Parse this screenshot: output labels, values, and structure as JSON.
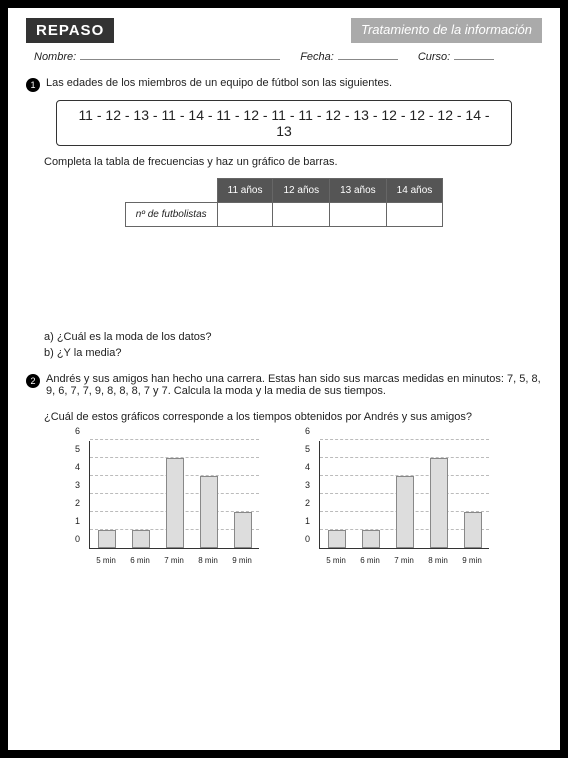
{
  "header": {
    "left": "REPASO",
    "right": "Tratamiento de la información"
  },
  "info": {
    "nombre_label": "Nombre:",
    "fecha_label": "Fecha:",
    "curso_label": "Curso:"
  },
  "q1": {
    "num": "1",
    "text": "Las edades de los miembros de un equipo de fútbol son las siguientes.",
    "data": "11 - 12 - 13 - 11 - 14 - 11 - 12 - 11 - 11 - 12 - 13 - 12 - 12 - 12 - 14 - 13",
    "instruction": "Completa la tabla de frecuencias y haz un gráfico de barras.",
    "table": {
      "row_label": "nº de futbolistas",
      "cols": [
        "11 años",
        "12 años",
        "13 años",
        "14 años"
      ]
    },
    "a": "a)  ¿Cuál es la moda de los datos?",
    "b": "b)  ¿Y la media?"
  },
  "q2": {
    "num": "2",
    "text": "Andrés y sus amigos han hecho una carrera. Estas han sido sus marcas medidas en minutos: 7, 5, 8, 9, 6, 7, 7, 9, 8, 8, 8, 7 y 7. Calcula la moda y la media de sus tiempos.",
    "sub": "¿Cuál de estos gráficos corresponde a los tiempos obtenidos por Andrés y sus amigos?"
  },
  "chart": {
    "y_ticks": [
      0,
      1,
      2,
      3,
      4,
      5,
      6
    ],
    "x_labels": [
      "5 min",
      "6 min",
      "7 min",
      "8 min",
      "9 min"
    ],
    "y_max": 6,
    "chart1_values": [
      1,
      1,
      5,
      4,
      2
    ],
    "chart2_values": [
      1,
      1,
      4,
      5,
      2
    ],
    "bar_color": "#ddd",
    "bar_border": "#888",
    "grid_color": "#bbb"
  }
}
